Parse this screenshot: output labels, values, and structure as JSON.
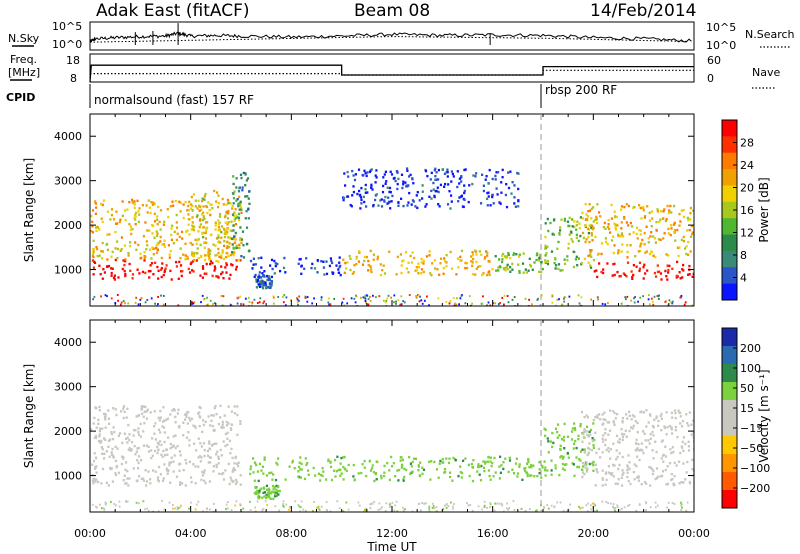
{
  "header": {
    "title": "Adak East (fitACF)",
    "beam": "Beam 08",
    "date": "14/Feb/2014"
  },
  "top_labels": {
    "nsky": "N.Sky",
    "nsearch": "N.Search",
    "freq_line1": "Freq.",
    "freq_line2": "[MHz]",
    "nave": "Nave",
    "cpid": "CPID",
    "nsky_ticks": [
      "10^5",
      "10^0"
    ],
    "nsearch_ticks": [
      "10^5",
      "10^0"
    ],
    "freq_ticks": [
      "18",
      "8"
    ],
    "nave_ticks": [
      "60",
      "0"
    ]
  },
  "cpid_segments": [
    {
      "text": "normalsound (fast) 157 RF",
      "start_hour": 0
    },
    {
      "text": "rbsp 200 RF",
      "start_hour": 18
    }
  ],
  "colors": {
    "power_scale": [
      "#0a14ff",
      "#2a55c8",
      "#3a8a7a",
      "#2e8a4a",
      "#4fb830",
      "#a8c81e",
      "#f0d000",
      "#f0a000",
      "#ff7a00",
      "#ff3000",
      "#ff0000"
    ],
    "velocity_scale": [
      "#ff0000",
      "#ff5a00",
      "#ff9600",
      "#ffc800",
      "#c8c8c0",
      "#c8c8c0",
      "#7bd23c",
      "#2e8a4a",
      "#2a6ab0",
      "#1a2aa8"
    ]
  },
  "chart_data": [
    {
      "type": "line",
      "name": "sky-noise-search-noise",
      "x_range_hours": [
        0,
        24
      ],
      "series": [
        {
          "name": "N.Sky",
          "x": [
            0,
            0.2,
            1,
            2,
            3,
            3.5,
            4,
            5,
            6,
            8,
            10,
            12,
            14,
            16,
            18,
            20,
            22,
            24
          ],
          "y_log": [
            1.5,
            2.0,
            2.2,
            2.4,
            2.5,
            3.0,
            2.5,
            2.6,
            2.5,
            2.3,
            2.5,
            2.8,
            2.6,
            2.7,
            2.6,
            2.2,
            2.0,
            1.6
          ]
        },
        {
          "name": "N.Search",
          "x": [
            0,
            6,
            12,
            18,
            24
          ],
          "y_log": [
            1.4,
            1.9,
            2.4,
            2.1,
            1.5
          ]
        }
      ],
      "ylim_log": [
        0,
        5
      ]
    },
    {
      "type": "line",
      "name": "frequency-nave",
      "series": [
        {
          "name": "Freq.",
          "x": [
            0,
            0.05,
            10,
            10,
            18,
            18,
            24
          ],
          "y": [
            8,
            14,
            14,
            10.5,
            10.5,
            13.5,
            13.5
          ]
        },
        {
          "name": "Nave",
          "x": [
            0,
            10,
            10,
            18,
            18,
            24
          ],
          "y": [
            18,
            18,
            15,
            15,
            25,
            25
          ]
        }
      ],
      "freq_ylim": [
        8,
        18
      ],
      "nave_ylim": [
        0,
        60
      ]
    },
    {
      "type": "heatmap",
      "name": "power",
      "xlabel": "",
      "ylabel": "Slant Range [km]",
      "colorbar_label": "Power [dB]",
      "colorbar_ticks": [
        "28",
        "24",
        "20",
        "16",
        "12",
        "8",
        "4"
      ],
      "ylim": [
        180,
        4500
      ],
      "yticks": [
        1000,
        2000,
        3000,
        4000
      ],
      "xlim": [
        0,
        24
      ],
      "boundary_hour": 18,
      "regions": [
        {
          "x": [
            0,
            6
          ],
          "range": [
            800,
            1250
          ],
          "value": 30
        },
        {
          "x": [
            0,
            6
          ],
          "range": [
            1250,
            2600
          ],
          "value": 20
        },
        {
          "x": [
            4,
            6
          ],
          "range": [
            1200,
            2800
          ],
          "value": 18
        },
        {
          "x": [
            5.6,
            6.3
          ],
          "range": [
            1300,
            3200
          ],
          "value": 10
        },
        {
          "x": [
            6.3,
            10
          ],
          "range": [
            900,
            1300
          ],
          "value": 4
        },
        {
          "x": [
            6.5,
            7.2
          ],
          "range": [
            600,
            900
          ],
          "value": 6
        },
        {
          "x": [
            10,
            16
          ],
          "range": [
            900,
            1450
          ],
          "value": 20
        },
        {
          "x": [
            16,
            18
          ],
          "range": [
            950,
            1400
          ],
          "value": 14
        },
        {
          "x": [
            10,
            17
          ],
          "range": [
            2400,
            3300
          ],
          "value": 4
        },
        {
          "x": [
            18,
            20
          ],
          "range": [
            1000,
            2200
          ],
          "value": 14
        },
        {
          "x": [
            20,
            24
          ],
          "range": [
            800,
            1200
          ],
          "value": 30
        },
        {
          "x": [
            19.5,
            24
          ],
          "range": [
            1300,
            2500
          ],
          "value": 20
        }
      ]
    },
    {
      "type": "heatmap",
      "name": "velocity",
      "xlabel": "Time UT",
      "ylabel": "Slant Range [km]",
      "colorbar_label": "Velocity [m s⁻¹]",
      "colorbar_ticks": [
        "200",
        "100",
        "50",
        "15",
        "−15",
        "−50",
        "−100",
        "−200"
      ],
      "ylim": [
        180,
        4500
      ],
      "yticks": [
        1000,
        2000,
        3000,
        4000
      ],
      "xlim": [
        0,
        24
      ],
      "xticks": [
        "00:00",
        "04:00",
        "08:00",
        "12:00",
        "16:00",
        "20:00",
        "00:00"
      ],
      "boundary_hour": 18,
      "regions": [
        {
          "x": [
            0,
            6
          ],
          "range": [
            800,
            1250
          ],
          "value": 0
        },
        {
          "x": [
            0,
            6
          ],
          "range": [
            1250,
            2600
          ],
          "value": 0
        },
        {
          "x": [
            6.3,
            18
          ],
          "range": [
            900,
            1450
          ],
          "value": 30
        },
        {
          "x": [
            6.5,
            7.5
          ],
          "range": [
            500,
            800
          ],
          "value": 30
        },
        {
          "x": [
            18,
            20
          ],
          "range": [
            1000,
            2200
          ],
          "value": 30
        },
        {
          "x": [
            19.5,
            24
          ],
          "range": [
            800,
            2500
          ],
          "value": 0
        }
      ]
    }
  ]
}
